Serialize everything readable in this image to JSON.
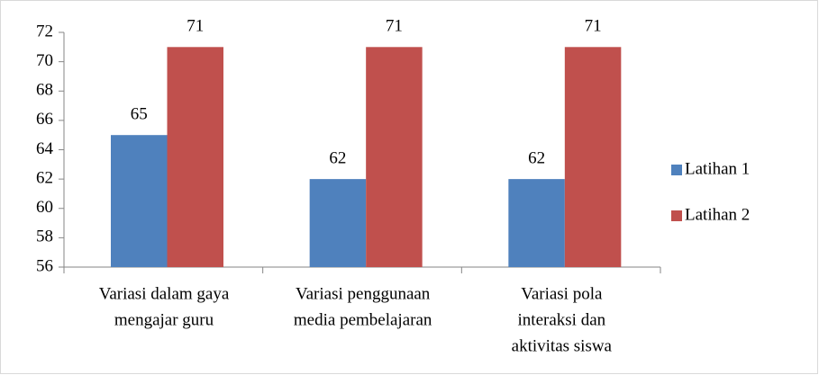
{
  "chart_data": {
    "type": "bar",
    "categories": [
      [
        "Variasi dalam gaya",
        "mengajar guru"
      ],
      [
        "Variasi penggunaan",
        "media pembelajaran"
      ],
      [
        "Variasi pola",
        "interaksi dan",
        "aktivitas siswa"
      ]
    ],
    "series": [
      {
        "name": "Latihan 1",
        "color": "#4f81bd",
        "values": [
          65,
          62,
          62
        ]
      },
      {
        "name": "Latihan 2",
        "color": "#c0504d",
        "values": [
          71,
          71,
          71
        ]
      }
    ],
    "ylim": [
      56,
      72
    ],
    "yticks": [
      56,
      58,
      60,
      62,
      64,
      66,
      68,
      70,
      72
    ],
    "legend": "right"
  }
}
